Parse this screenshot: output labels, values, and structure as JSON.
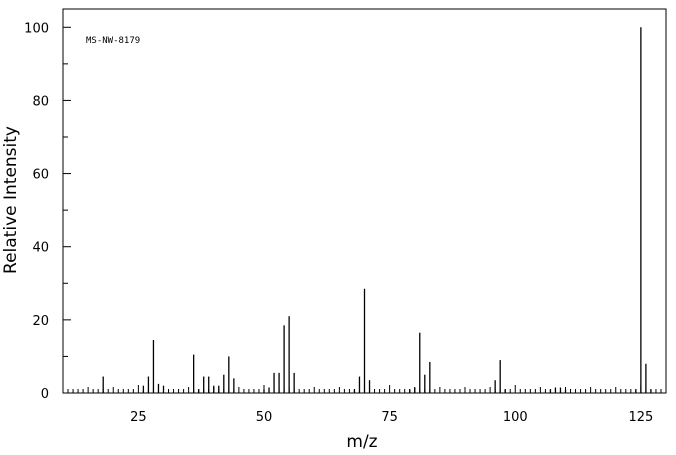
{
  "chart_data": {
    "type": "bar",
    "annotation": "MS-NW-8179",
    "xlabel": "m/z",
    "ylabel": "Relative Intensity",
    "xlim": [
      10,
      130
    ],
    "ylim": [
      0,
      105
    ],
    "x_ticks": [
      25,
      50,
      75,
      100,
      125
    ],
    "y_ticks": [
      0,
      20,
      40,
      60,
      80,
      100
    ],
    "grid": false,
    "x": [
      18,
      26,
      27,
      28,
      29,
      30,
      36,
      37,
      38,
      39,
      40,
      41,
      42,
      43,
      44,
      50,
      51,
      52,
      53,
      54,
      55,
      56,
      68,
      69,
      70,
      71,
      79,
      80,
      81,
      82,
      83,
      96,
      97,
      98,
      107,
      108,
      109,
      110,
      124,
      125,
      126,
      127
    ],
    "values": [
      4.5,
      2,
      4.5,
      14.5,
      2.5,
      2,
      10.5,
      1,
      4.5,
      4.5,
      2,
      2,
      5,
      10,
      4,
      1,
      1.5,
      5.5,
      5.5,
      18.5,
      21,
      5.5,
      1,
      4.5,
      28.5,
      3.5,
      1,
      1.5,
      16.5,
      5,
      8.5,
      3.5,
      9,
      1,
      1,
      1.5,
      1.5,
      1,
      1,
      100,
      8,
      1
    ]
  }
}
